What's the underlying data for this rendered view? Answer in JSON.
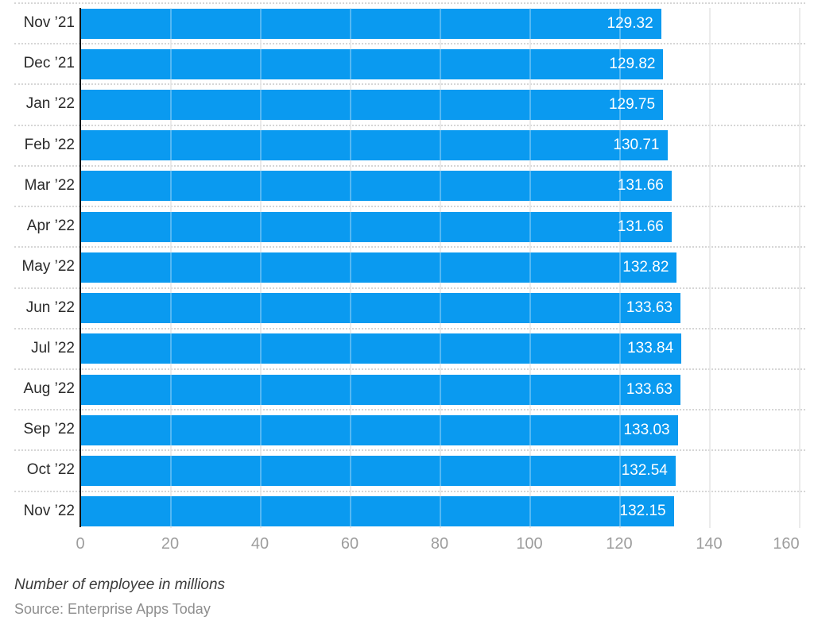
{
  "chart_data": {
    "type": "bar",
    "orientation": "horizontal",
    "categories": [
      "Nov ’21",
      "Dec ’21",
      "Jan ’22",
      "Feb ’22",
      "Mar ’22",
      "Apr ’22",
      "May ’22",
      "Jun ’22",
      "Jul ’22",
      "Aug ’22",
      "Sep ’22",
      "Oct ’22",
      "Nov ’22"
    ],
    "values": [
      129.32,
      129.82,
      129.75,
      130.71,
      131.66,
      131.66,
      132.82,
      133.63,
      133.84,
      133.63,
      133.03,
      132.54,
      132.15
    ],
    "value_labels": [
      "129.32",
      "129.82",
      "129.75",
      "130.71",
      "131.66",
      "131.66",
      "132.82",
      "133.63",
      "133.84",
      "133.63",
      "133.03",
      "132.54",
      "132.15"
    ],
    "x_ticks": [
      "0",
      "20",
      "40",
      "60",
      "80",
      "100",
      "120",
      "140",
      "160"
    ],
    "xlim": [
      0,
      160
    ],
    "grid": "vertical-on",
    "legend": "none",
    "caption": "Number of employee in millions",
    "source": "Source: Enterprise Apps Today",
    "colors": {
      "bar": "#0a9af0",
      "value_text": "#ffffff",
      "category_text": "#2a2a2a",
      "tick_text": "#9d9d9d",
      "gridline": "#e2e2e2",
      "separator": "#d6d6d6",
      "axis_line": "#141414",
      "caption_text": "#3b3b3b",
      "source_text": "#8e8e8e",
      "background": "#ffffff"
    }
  }
}
